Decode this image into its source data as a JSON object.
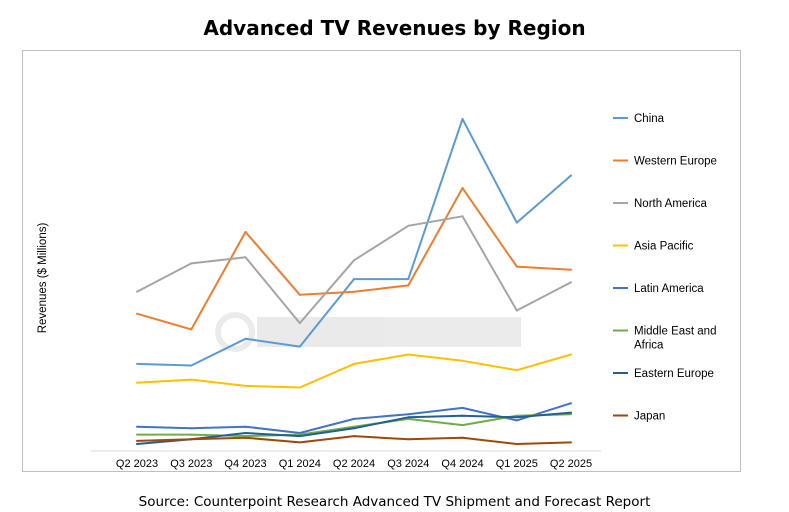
{
  "chart_data": {
    "type": "line",
    "title": "Advanced TV Revenues by Region",
    "ylabel": "Revenues ($ Millions)",
    "xlabel": "",
    "categories": [
      "Q2 2023",
      "Q3 2023",
      "Q4 2023",
      "Q1 2024",
      "Q2 2024",
      "Q3 2024",
      "Q4 2024",
      "Q1 2025",
      "Q2 2025"
    ],
    "ylim": [
      0,
      100
    ],
    "grid": false,
    "legend_position": "right",
    "series": [
      {
        "name": "China",
        "color": "#5b9bd5",
        "values": [
          22,
          21.5,
          30,
          27.5,
          49,
          49,
          100,
          67,
          82
        ]
      },
      {
        "name": "Western Europe",
        "color": "#ed7d31",
        "values": [
          38,
          33,
          64,
          44,
          45,
          47,
          78,
          53,
          52
        ]
      },
      {
        "name": "North America",
        "color": "#a5a5a5",
        "values": [
          45,
          54,
          56,
          35,
          55,
          66,
          69,
          39,
          48
        ]
      },
      {
        "name": "Asia Pacific",
        "color": "#ffc000",
        "values": [
          16,
          17,
          15,
          14.5,
          22,
          25,
          23,
          20,
          25
        ]
      },
      {
        "name": "Latin America",
        "color": "#4472c4",
        "values": [
          2,
          1.5,
          2,
          0,
          4.5,
          6,
          8,
          4,
          9.5
        ]
      },
      {
        "name": "Middle East and Africa",
        "color": "#70ad47",
        "values": [
          -0.5,
          -0.5,
          -1,
          -0.5,
          2,
          4.5,
          2.5,
          5.5,
          6
        ]
      },
      {
        "name": "Eastern Europe",
        "color": "#255e91",
        "values": [
          -3.5,
          -2,
          0,
          -1,
          1.5,
          5,
          5.5,
          5,
          6.5
        ]
      },
      {
        "name": "Japan",
        "color": "#9e480e",
        "values": [
          -2.5,
          -2,
          -1.5,
          -3,
          -1,
          -2,
          -1.5,
          -3.5,
          -3
        ]
      }
    ]
  },
  "source": "Source: Counterpoint Research Advanced TV Shipment and Forecast Report"
}
